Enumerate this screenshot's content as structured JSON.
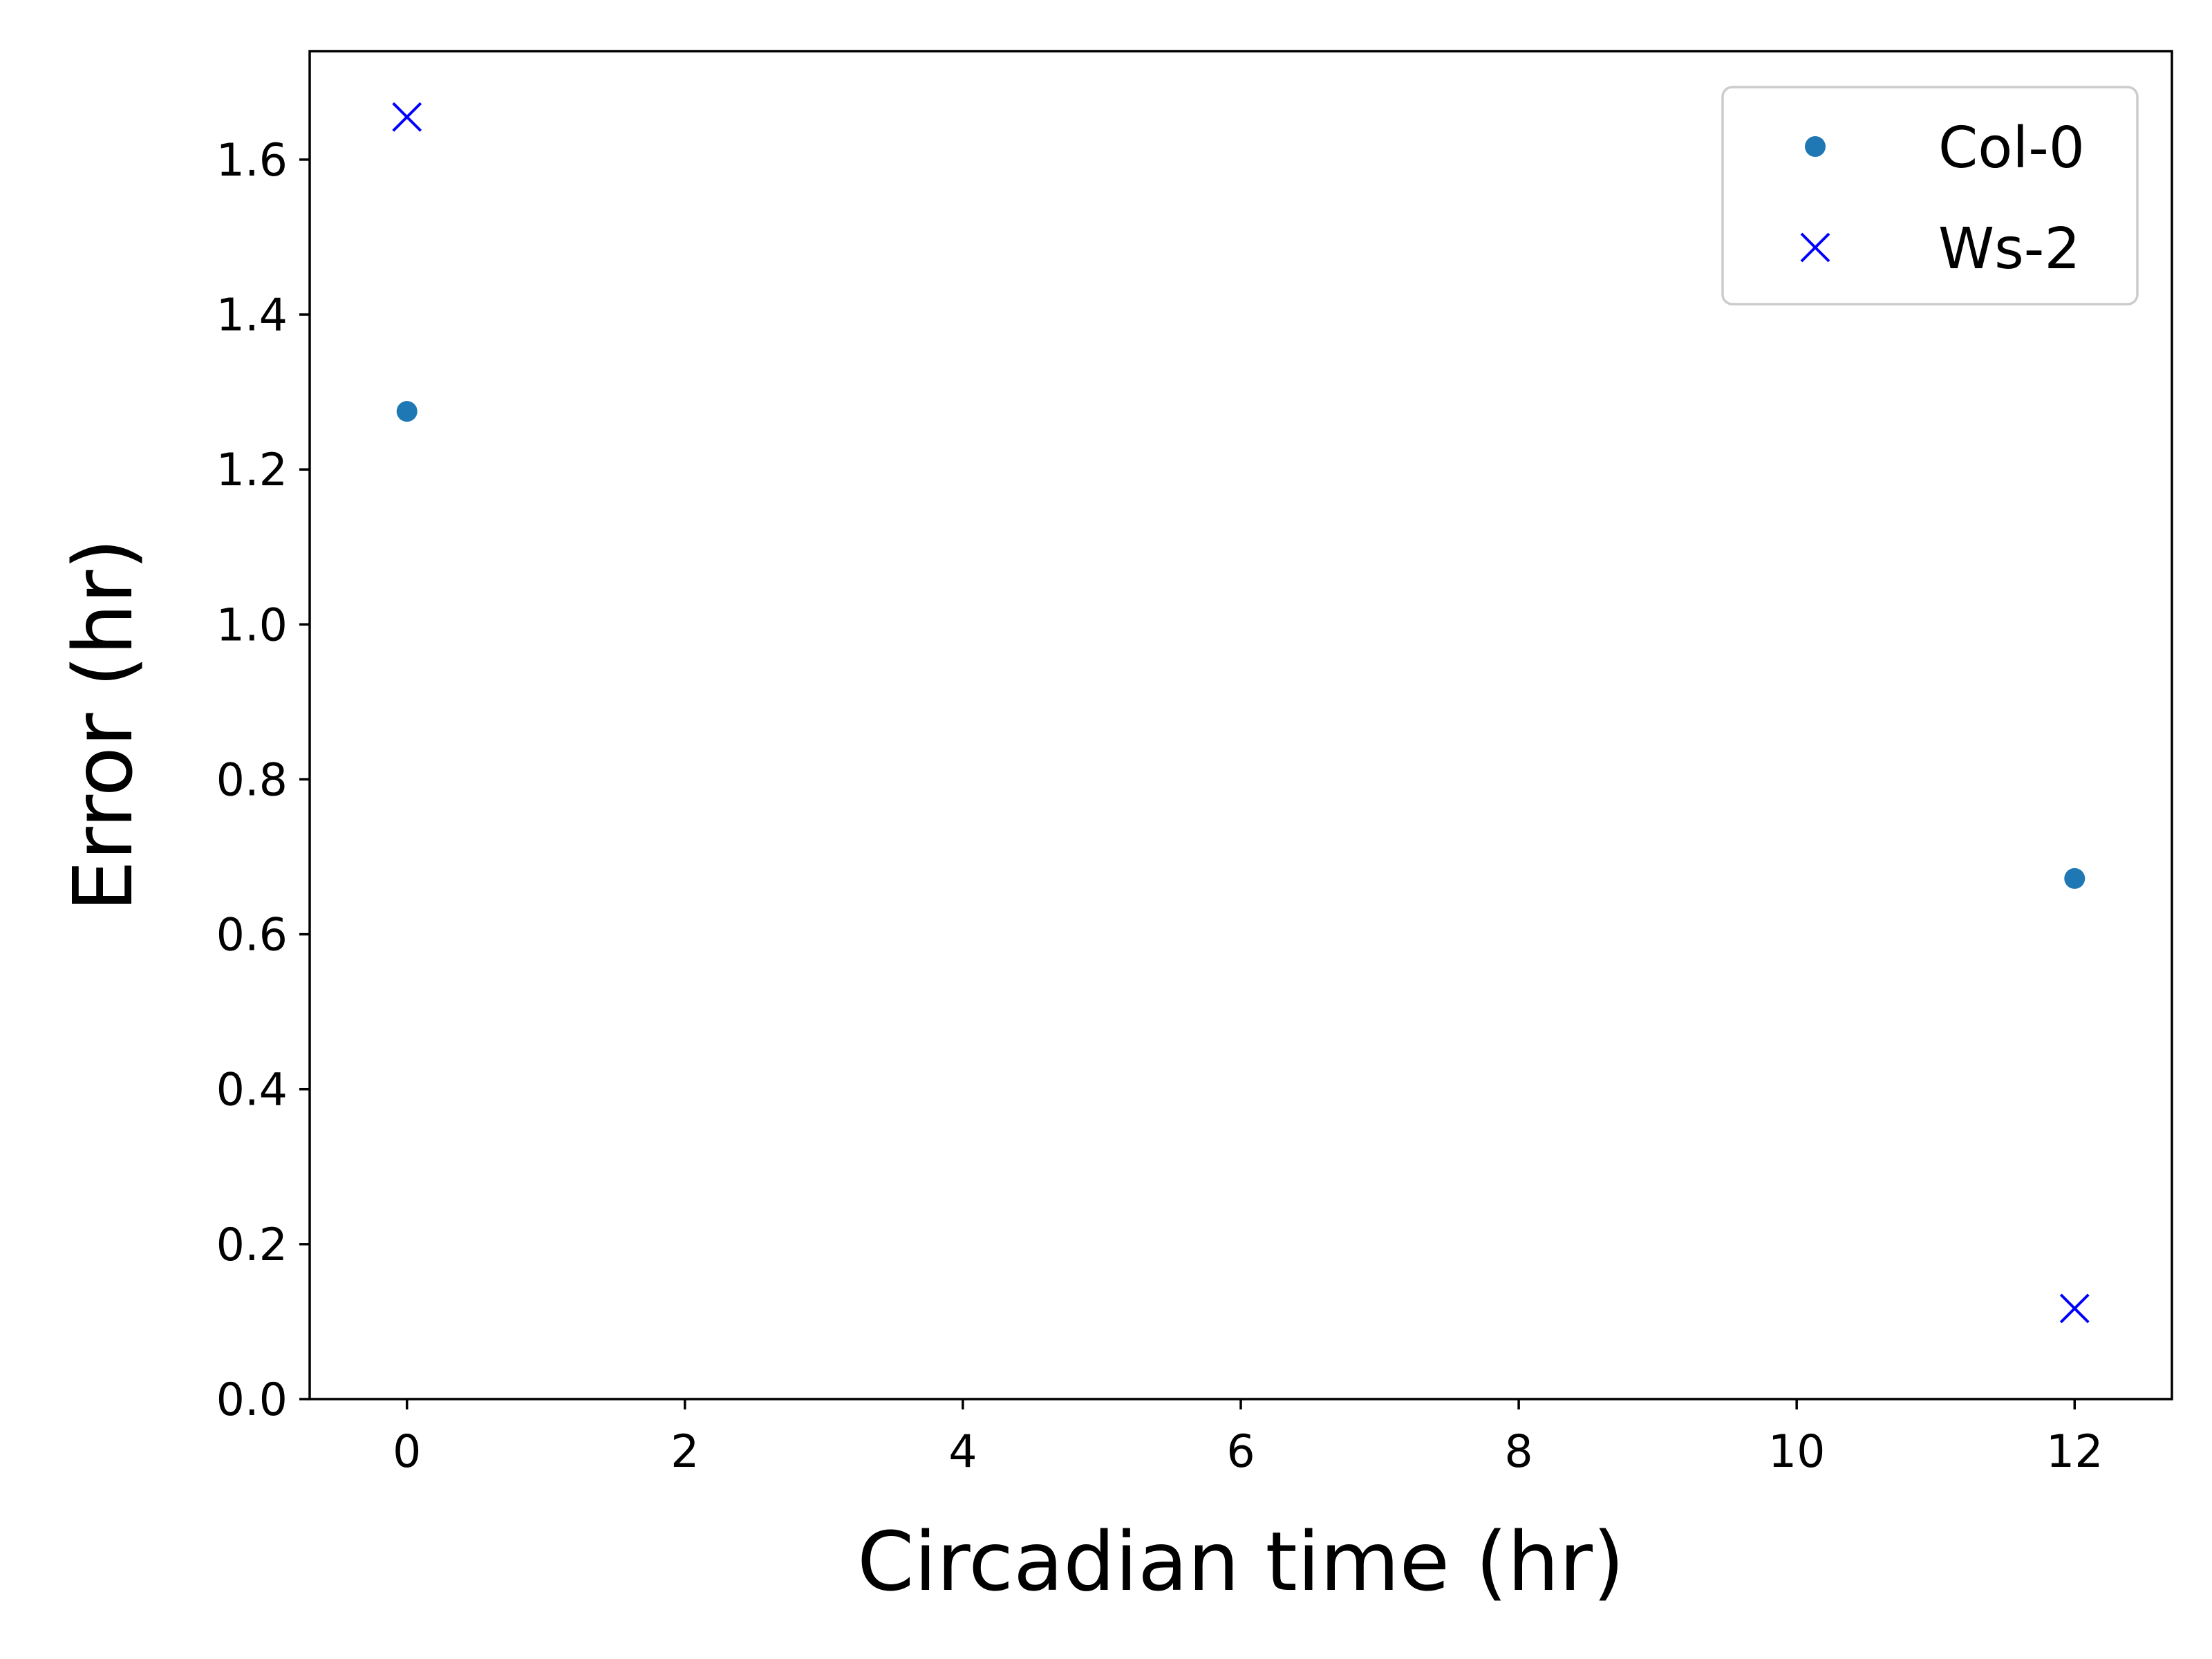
{
  "chart_data": {
    "type": "scatter",
    "title": "",
    "xlabel": "Circadian time (hr)",
    "ylabel": "Error (hr)",
    "xlim": [
      -0.7,
      12.7
    ],
    "ylim": [
      0.0,
      1.74
    ],
    "xticks": [
      0,
      2,
      4,
      6,
      8,
      10,
      12
    ],
    "xtick_labels": [
      "0",
      "2",
      "4",
      "6",
      "8",
      "10",
      "12"
    ],
    "yticks": [
      0.0,
      0.2,
      0.4,
      0.6,
      0.8,
      1.0,
      1.2,
      1.4,
      1.6
    ],
    "ytick_labels": [
      "0.0",
      "0.2",
      "0.4",
      "0.6",
      "0.8",
      "1.0",
      "1.2",
      "1.4",
      "1.6"
    ],
    "grid": false,
    "legend_position": "top-right",
    "series": [
      {
        "name": "Col-0",
        "marker": "circle",
        "color": "#1f77b4",
        "x": [
          0,
          12
        ],
        "y": [
          1.275,
          0.672
        ]
      },
      {
        "name": "Ws-2",
        "marker": "x",
        "color": "#0000ff",
        "x": [
          0,
          12
        ],
        "y": [
          1.655,
          0.117
        ]
      }
    ]
  }
}
